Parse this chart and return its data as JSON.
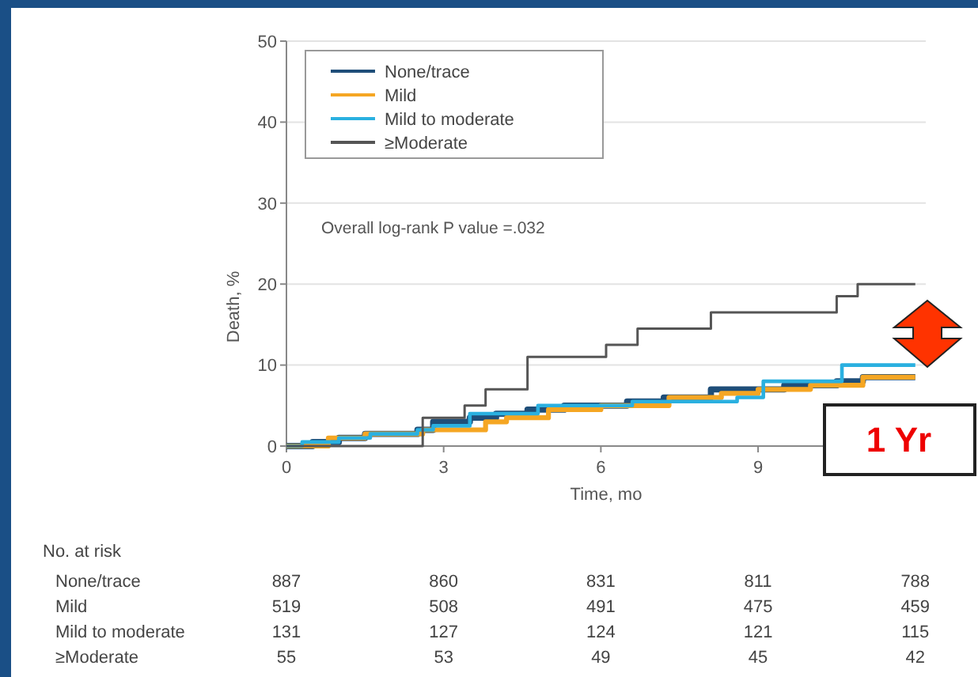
{
  "chart_data": {
    "type": "step",
    "xlabel": "Time, mo",
    "ylabel": "Death, %",
    "xlim": [
      0,
      12.2
    ],
    "xticks": [
      0,
      3,
      6,
      9
    ],
    "ylim": [
      0,
      50
    ],
    "yticks": [
      0,
      10,
      20,
      30,
      40,
      50
    ],
    "grid": "y",
    "legend": "top left",
    "line_style": "solid",
    "marker": "none",
    "series": [
      {
        "name": "None/trace",
        "color": "#1f4e79",
        "x": [
          0,
          0.5,
          1,
          1.5,
          2.5,
          2.8,
          3.5,
          4,
          4.6,
          5.3,
          6.5,
          7.2,
          8.1,
          9.5,
          10.5,
          11,
          12
        ],
        "values": [
          0,
          0.5,
          1,
          1.5,
          2,
          3,
          3.5,
          4,
          4.5,
          5,
          5.5,
          6,
          7,
          7.5,
          8,
          8.5,
          8.5
        ]
      },
      {
        "name": "Mild",
        "color": "#f5a623",
        "x": [
          0,
          0.8,
          1.5,
          2.6,
          3.8,
          4.2,
          5,
          6,
          7.3,
          8.3,
          9,
          10,
          11,
          12
        ],
        "values": [
          0,
          1,
          1.5,
          2,
          3,
          3.5,
          4.5,
          5,
          6,
          6.5,
          7,
          7.5,
          8.5,
          8.5
        ]
      },
      {
        "name": "Mild to moderate",
        "color": "#2ab0e0",
        "x": [
          0,
          0.3,
          1,
          1.6,
          2.5,
          2.8,
          3.5,
          4.8,
          6.6,
          8.6,
          9.1,
          10.6,
          12
        ],
        "values": [
          0,
          0.5,
          1,
          1.5,
          2,
          2.5,
          4,
          5,
          5.5,
          6,
          8,
          10,
          10
        ]
      },
      {
        "name": "≥Moderate",
        "color": "#555555",
        "x": [
          0,
          2.6,
          3.4,
          3.8,
          4.6,
          6.1,
          6.7,
          8.1,
          10.5,
          10.9,
          12
        ],
        "values": [
          0,
          3.5,
          5,
          7,
          11,
          12.5,
          14.5,
          16.5,
          18.5,
          20,
          20
        ]
      }
    ],
    "annotations": [
      "Overall log-rank P value =.032",
      "1 Yr",
      "No. at risk",
      "None/trace",
      "887",
      "860",
      "831",
      "811",
      "788",
      "Mild",
      "519",
      "508",
      "491",
      "475",
      "459",
      "Mild to moderate",
      "131",
      "127",
      "124",
      "121",
      "115",
      "≥Moderate",
      "55",
      "53",
      "49",
      "45",
      "42"
    ]
  }
}
